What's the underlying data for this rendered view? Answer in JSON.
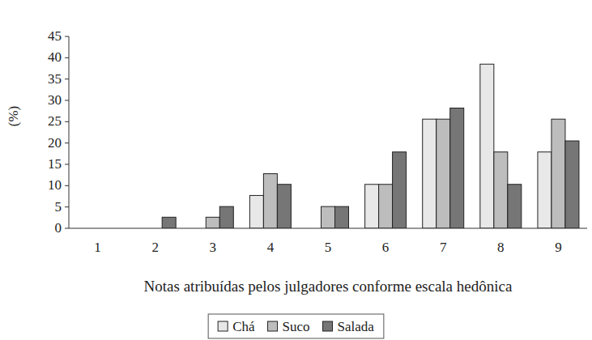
{
  "chart_data": {
    "type": "bar",
    "y_label": "(%)",
    "x_label": "Notas atribuídas pelos julgadores conforme escala hedônica",
    "categories": [
      1,
      2,
      3,
      4,
      5,
      6,
      7,
      8,
      9
    ],
    "series": [
      {
        "name": "Chá",
        "color": "#e8e8e8",
        "values": [
          0,
          0,
          0,
          7.7,
          0,
          10.3,
          25.6,
          38.5,
          17.9
        ]
      },
      {
        "name": "Suco",
        "color": "#bdbdbd",
        "values": [
          0,
          0,
          2.6,
          12.8,
          5.1,
          10.3,
          25.6,
          17.9,
          25.6
        ]
      },
      {
        "name": "Salada",
        "color": "#767676",
        "values": [
          0,
          2.6,
          5.1,
          10.3,
          5.1,
          17.9,
          28.2,
          10.3,
          20.5
        ]
      }
    ],
    "ylim": [
      0,
      45
    ],
    "yticks": [
      0,
      5,
      10,
      15,
      20,
      25,
      30,
      35,
      40,
      45
    ],
    "grid": false,
    "legend": "bottom"
  }
}
